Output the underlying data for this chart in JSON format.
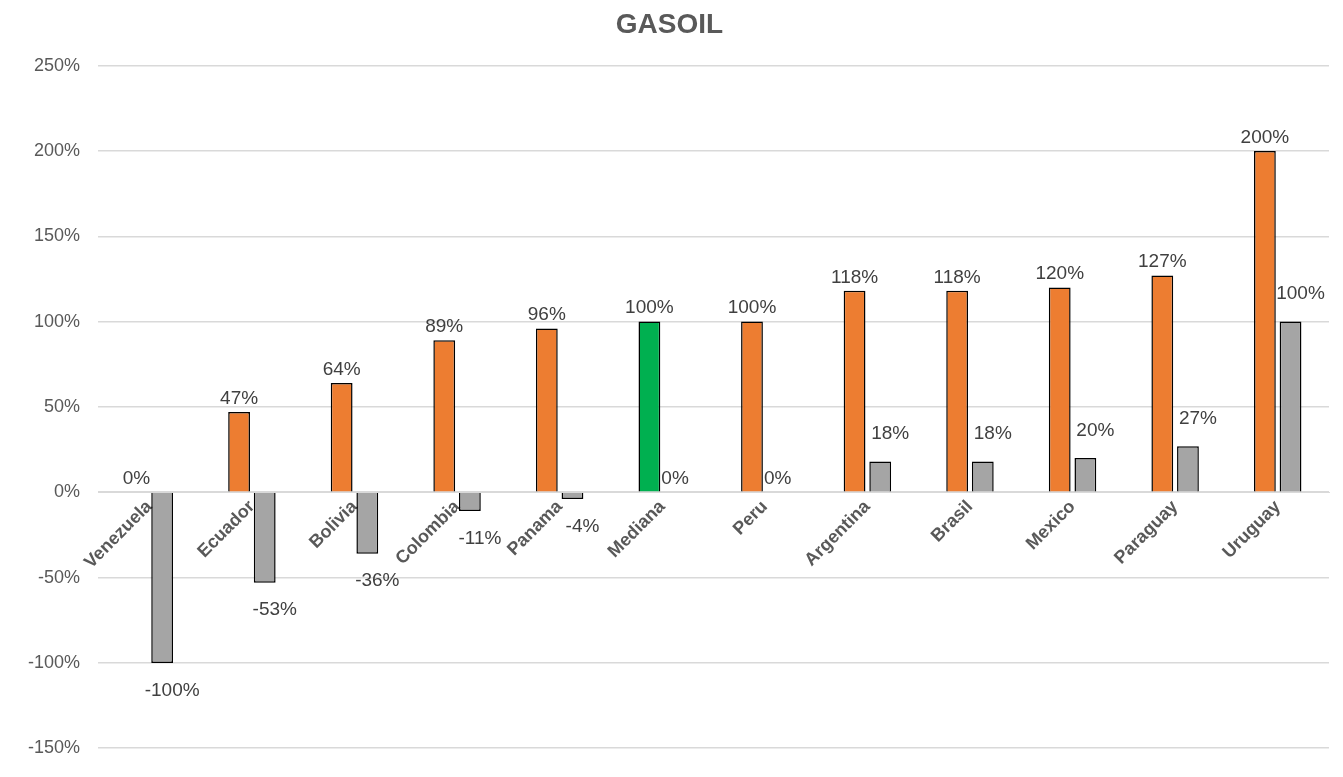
{
  "chart_data": {
    "type": "bar",
    "title": "GASOIL",
    "categories": [
      "Venezuela",
      "Ecuador",
      "Bolivia",
      "Colombia",
      "Panama",
      "Mediana",
      "Peru",
      "Argentina",
      "Brasil",
      "Mexico",
      "Paraguay",
      "Uruguay"
    ],
    "series": [
      {
        "colors": [
          "#ed7d31",
          "#ed7d31",
          "#ed7d31",
          "#ed7d31",
          "#ed7d31",
          "#00b050",
          "#ed7d31",
          "#ed7d31",
          "#ed7d31",
          "#ed7d31",
          "#ed7d31",
          "#ed7d31"
        ],
        "values": [
          0,
          47,
          64,
          89,
          96,
          100,
          100,
          118,
          118,
          120,
          127,
          200
        ],
        "value_labels": [
          "0%",
          "47%",
          "64%",
          "89%",
          "96%",
          "100%",
          "100%",
          "118%",
          "118%",
          "120%",
          "127%",
          "200%"
        ]
      },
      {
        "color": "#a5a5a5",
        "values": [
          -100,
          -53,
          -36,
          -11,
          -4,
          0,
          0,
          18,
          18,
          20,
          27,
          100
        ],
        "value_labels": [
          "-100%",
          "-53%",
          "-36%",
          "-11%",
          "-4%",
          "0%",
          "0%",
          "18%",
          "18%",
          "20%",
          "27%",
          "100%"
        ]
      }
    ],
    "ylim": [
      -150,
      250
    ],
    "yticks": [
      {
        "value": -150,
        "label": "-150%"
      },
      {
        "value": -100,
        "label": "-100%"
      },
      {
        "value": -50,
        "label": "-50%"
      },
      {
        "value": 0,
        "label": "0%"
      },
      {
        "value": 50,
        "label": "50%"
      },
      {
        "value": 100,
        "label": "100%"
      },
      {
        "value": 150,
        "label": "150%"
      },
      {
        "value": 200,
        "label": "200%"
      },
      {
        "value": 250,
        "label": "250%"
      }
    ],
    "grid": "y",
    "legend": false
  }
}
